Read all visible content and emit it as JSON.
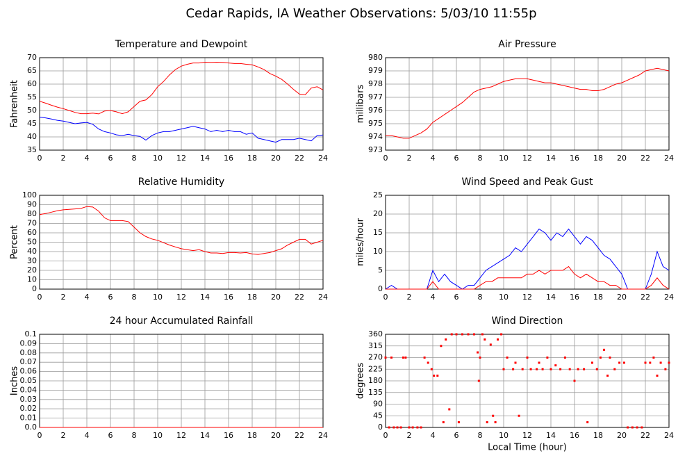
{
  "title": "Cedar Rapids, IA Weather Observations: 5/03/10 11:55p",
  "chart_data": [
    {
      "type": "line",
      "title": "Temperature and Dewpoint",
      "ylabel": "Fahrenheit",
      "xlim": [
        0,
        24
      ],
      "xticks": [
        0,
        2,
        4,
        6,
        8,
        10,
        12,
        14,
        16,
        18,
        20,
        22,
        24
      ],
      "ylim": [
        35,
        70
      ],
      "yticks": [
        35,
        40,
        45,
        50,
        55,
        60,
        65,
        70
      ],
      "grid": true,
      "x": [
        0,
        0.5,
        1,
        1.5,
        2,
        2.5,
        3,
        3.5,
        4,
        4.5,
        5,
        5.5,
        6,
        6.5,
        7,
        7.5,
        8,
        8.5,
        9,
        9.5,
        10,
        10.5,
        11,
        11.5,
        12,
        12.5,
        13,
        13.5,
        14,
        14.5,
        15,
        15.5,
        16,
        16.5,
        17,
        17.5,
        18,
        18.5,
        19,
        19.5,
        20,
        20.5,
        21,
        21.5,
        22,
        22.5,
        23,
        23.5,
        24
      ],
      "series": [
        {
          "color": "#ff0000",
          "values": [
            53.5,
            52.8,
            52,
            51.3,
            50.7,
            50,
            49.3,
            48.8,
            48.8,
            49,
            48.7,
            49.8,
            50,
            49.5,
            48.8,
            49.5,
            51.5,
            53.5,
            54,
            56,
            59,
            61,
            63.5,
            65.5,
            66.8,
            67.5,
            68,
            68,
            68.3,
            68.2,
            68.3,
            68.2,
            68,
            67.8,
            67.8,
            67.5,
            67.3,
            66.5,
            65.5,
            64,
            63,
            61.8,
            60,
            58,
            56.2,
            56,
            58.5,
            59,
            57.8
          ]
        },
        {
          "color": "#0000ff",
          "values": [
            47.5,
            47.2,
            46.8,
            46.3,
            46,
            45.5,
            45,
            45.3,
            45.5,
            44.8,
            43,
            42,
            41.5,
            40.8,
            40.5,
            41,
            40.5,
            40.2,
            38.8,
            40.5,
            41.5,
            42,
            42,
            42.5,
            43,
            43.5,
            44,
            43.5,
            43,
            42,
            42.5,
            42,
            42.5,
            42,
            42,
            41,
            41.5,
            39.5,
            39,
            38.5,
            38,
            39,
            39,
            39,
            39.5,
            39,
            38.5,
            40.5,
            40.7
          ]
        }
      ]
    },
    {
      "type": "line",
      "title": "Air Pressure",
      "ylabel": "millibars",
      "xlim": [
        0,
        24
      ],
      "xticks": [
        0,
        2,
        4,
        6,
        8,
        10,
        12,
        14,
        16,
        18,
        20,
        22,
        24
      ],
      "ylim": [
        973,
        980
      ],
      "yticks": [
        973,
        974,
        975,
        976,
        977,
        978,
        979,
        980
      ],
      "grid": true,
      "x": [
        0,
        0.5,
        1,
        1.5,
        2,
        2.5,
        3,
        3.5,
        4,
        4.5,
        5,
        5.5,
        6,
        6.5,
        7,
        7.5,
        8,
        8.5,
        9,
        9.5,
        10,
        10.5,
        11,
        11.5,
        12,
        12.5,
        13,
        13.5,
        14,
        14.5,
        15,
        15.5,
        16,
        16.5,
        17,
        17.5,
        18,
        18.5,
        19,
        19.5,
        20,
        20.5,
        21,
        21.5,
        22,
        22.5,
        23,
        23.5,
        24
      ],
      "series": [
        {
          "color": "#ff0000",
          "values": [
            974.1,
            974.1,
            974,
            973.9,
            973.9,
            974.1,
            974.3,
            974.6,
            975.1,
            975.4,
            975.7,
            976,
            976.3,
            976.6,
            977,
            977.4,
            977.6,
            977.7,
            977.8,
            978,
            978.2,
            978.3,
            978.4,
            978.4,
            978.4,
            978.3,
            978.2,
            978.1,
            978.1,
            978,
            977.9,
            977.8,
            977.7,
            977.6,
            977.6,
            977.5,
            977.5,
            977.6,
            977.8,
            978,
            978.1,
            978.3,
            978.5,
            978.7,
            979,
            979.1,
            979.2,
            979.1,
            979
          ]
        }
      ]
    },
    {
      "type": "line",
      "title": "Relative Humidity",
      "ylabel": "Percent",
      "xlim": [
        0,
        24
      ],
      "xticks": [
        0,
        2,
        4,
        6,
        8,
        10,
        12,
        14,
        16,
        18,
        20,
        22,
        24
      ],
      "ylim": [
        0,
        100
      ],
      "yticks": [
        0,
        10,
        20,
        30,
        40,
        50,
        60,
        70,
        80,
        90,
        100
      ],
      "grid": true,
      "x": [
        0,
        0.5,
        1,
        1.5,
        2,
        2.5,
        3,
        3.5,
        4,
        4.5,
        5,
        5.5,
        6,
        6.5,
        7,
        7.5,
        8,
        8.5,
        9,
        9.5,
        10,
        10.5,
        11,
        11.5,
        12,
        12.5,
        13,
        13.5,
        14,
        14.5,
        15,
        15.5,
        16,
        16.5,
        17,
        17.5,
        18,
        18.5,
        19,
        19.5,
        20,
        20.5,
        21,
        21.5,
        22,
        22.5,
        23,
        23.5,
        24
      ],
      "series": [
        {
          "color": "#ff0000",
          "values": [
            79.5,
            80.5,
            82,
            83.5,
            84.5,
            85,
            85.5,
            86,
            88,
            87.5,
            83,
            76,
            73,
            73,
            73,
            72,
            66,
            60,
            56,
            53.5,
            52,
            49.5,
            47,
            45,
            43,
            42,
            41,
            42,
            40,
            38.5,
            38.5,
            38,
            39,
            39,
            38.5,
            39,
            37.5,
            37,
            38,
            39,
            41,
            43,
            47,
            50,
            53,
            53,
            48,
            50,
            52
          ]
        }
      ]
    },
    {
      "type": "line",
      "title": "Wind Speed and Peak Gust",
      "ylabel": "miles/hour",
      "xlim": [
        0,
        24
      ],
      "xticks": [
        0,
        2,
        4,
        6,
        8,
        10,
        12,
        14,
        16,
        18,
        20,
        22,
        24
      ],
      "ylim": [
        0,
        25
      ],
      "yticks": [
        0,
        5,
        10,
        15,
        20,
        25
      ],
      "grid": true,
      "x": [
        0,
        0.5,
        1,
        1.5,
        2,
        2.5,
        3,
        3.5,
        4,
        4.5,
        5,
        5.5,
        6,
        6.5,
        7,
        7.5,
        8,
        8.5,
        9,
        9.5,
        10,
        10.5,
        11,
        11.5,
        12,
        12.5,
        13,
        13.5,
        14,
        14.5,
        15,
        15.5,
        16,
        16.5,
        17,
        17.5,
        18,
        18.5,
        19,
        19.5,
        20,
        20.5,
        21,
        21.5,
        22,
        22.5,
        23,
        23.5,
        24
      ],
      "series": [
        {
          "color": "#0000ff",
          "values": [
            0,
            1,
            0,
            0,
            0,
            0,
            0,
            0,
            5,
            2,
            4,
            2,
            1,
            0,
            1,
            1,
            3,
            5,
            6,
            7,
            8,
            9,
            11,
            10,
            12,
            14,
            16,
            15,
            13,
            15,
            14,
            16,
            14,
            12,
            14,
            13,
            11,
            9,
            8,
            6,
            4,
            0,
            0,
            0,
            0,
            4,
            10,
            6,
            5
          ]
        },
        {
          "color": "#ff0000",
          "values": [
            0,
            0,
            0,
            0,
            0,
            0,
            0,
            0,
            2,
            0,
            0,
            0,
            0,
            0,
            0,
            0,
            1,
            2,
            2,
            3,
            3,
            3,
            3,
            3,
            4,
            4,
            5,
            4,
            5,
            5,
            5,
            6,
            4,
            3,
            4,
            3,
            2,
            2,
            1,
            1,
            0,
            0,
            0,
            0,
            0,
            1,
            3,
            1,
            0
          ]
        }
      ]
    },
    {
      "type": "line",
      "title": "24 hour Accumulated Rainfall",
      "ylabel": "Inches",
      "xlim": [
        0,
        24
      ],
      "xticks": [
        0,
        2,
        4,
        6,
        8,
        10,
        12,
        14,
        16,
        18,
        20,
        22,
        24
      ],
      "ylim": [
        0,
        0.1
      ],
      "yticks": [
        {
          "value": 0,
          "label": "0.0"
        },
        0.01,
        0.02,
        0.03,
        0.04,
        0.05,
        0.06,
        0.07,
        0.08,
        0.09,
        0.1
      ],
      "grid": true,
      "x": [
        0,
        24
      ],
      "series": [
        {
          "color": "#ff0000",
          "values": [
            0,
            0
          ]
        }
      ]
    },
    {
      "type": "scatter",
      "title": "Wind Direction",
      "ylabel": "degrees",
      "xlabel": "Local Time (hour)",
      "xlim": [
        0,
        24
      ],
      "xticks": [
        0,
        2,
        4,
        6,
        8,
        10,
        12,
        14,
        16,
        18,
        20,
        22,
        24
      ],
      "ylim": [
        0,
        360
      ],
      "yticks": [
        0,
        45,
        90,
        135,
        180,
        225,
        270,
        315,
        360
      ],
      "grid": true,
      "color": "#ff0000",
      "x": [
        0,
        0.3,
        0.5,
        0.7,
        1,
        1.3,
        1.5,
        1.7,
        2,
        2.3,
        2.7,
        3,
        3.3,
        3.6,
        3.9,
        4.1,
        4.4,
        4.7,
        4.9,
        5.1,
        5.4,
        5.6,
        6,
        6.2,
        6.5,
        7,
        7.5,
        7.8,
        7.9,
        8,
        8.2,
        8.4,
        8.6,
        8.9,
        9.1,
        9.3,
        9.5,
        9.8,
        10,
        10.3,
        10.8,
        11,
        11.3,
        11.6,
        12,
        12.3,
        12.8,
        13,
        13.3,
        13.7,
        14,
        14.4,
        14.8,
        15.2,
        15.6,
        16,
        16.3,
        16.8,
        17.1,
        17.5,
        17.9,
        18.2,
        18.5,
        18.8,
        19,
        19.4,
        19.8,
        20.2,
        20.5,
        20.9,
        21.3,
        21.7,
        22,
        22.4,
        22.7,
        23,
        23.3,
        23.7,
        24
      ],
      "values": [
        270,
        0,
        270,
        0,
        0,
        0,
        270,
        270,
        0,
        0,
        0,
        0,
        270,
        250,
        225,
        200,
        200,
        315,
        20,
        340,
        70,
        360,
        360,
        20,
        360,
        360,
        360,
        290,
        180,
        270,
        360,
        340,
        20,
        320,
        45,
        20,
        340,
        360,
        225,
        270,
        225,
        250,
        45,
        225,
        270,
        225,
        225,
        250,
        225,
        270,
        225,
        240,
        225,
        270,
        225,
        180,
        225,
        225,
        20,
        250,
        225,
        270,
        300,
        200,
        270,
        225,
        250,
        250,
        0,
        0,
        0,
        0,
        250,
        250,
        270,
        200,
        250,
        225,
        250
      ]
    }
  ]
}
